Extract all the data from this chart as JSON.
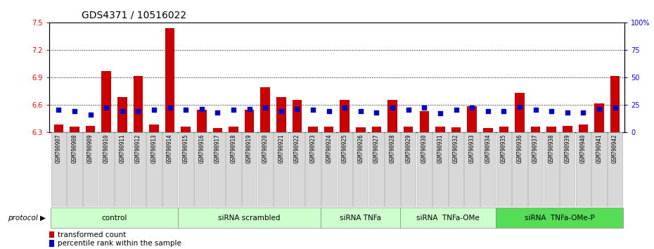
{
  "title": "GDS4371 / 10516022",
  "samples": [
    "GSM790907",
    "GSM790908",
    "GSM790909",
    "GSM790910",
    "GSM790911",
    "GSM790912",
    "GSM790913",
    "GSM790914",
    "GSM790915",
    "GSM790916",
    "GSM790917",
    "GSM790918",
    "GSM790919",
    "GSM790920",
    "GSM790921",
    "GSM790922",
    "GSM790923",
    "GSM790924",
    "GSM790925",
    "GSM790926",
    "GSM790927",
    "GSM790928",
    "GSM790929",
    "GSM790930",
    "GSM790931",
    "GSM790932",
    "GSM790933",
    "GSM790934",
    "GSM790935",
    "GSM790936",
    "GSM790937",
    "GSM790938",
    "GSM790939",
    "GSM790940",
    "GSM790941",
    "GSM790942"
  ],
  "red_values": [
    6.38,
    6.36,
    6.37,
    6.97,
    6.68,
    6.91,
    6.38,
    7.44,
    6.36,
    6.54,
    6.34,
    6.36,
    6.54,
    6.79,
    6.68,
    6.65,
    6.36,
    6.36,
    6.65,
    6.35,
    6.36,
    6.65,
    6.36,
    6.53,
    6.36,
    6.35,
    6.58,
    6.34,
    6.36,
    6.73,
    6.36,
    6.36,
    6.37,
    6.38,
    6.61,
    6.91
  ],
  "blue_values_pct": [
    20,
    19,
    16,
    22,
    19,
    19,
    20,
    22,
    20,
    21,
    18,
    20,
    21,
    22,
    19,
    21,
    20,
    19,
    22,
    19,
    18,
    22,
    20,
    22,
    17,
    20,
    22,
    19,
    19,
    23,
    20,
    19,
    18,
    18,
    21,
    22
  ],
  "groups": [
    {
      "label": "control",
      "start": 0,
      "end": 8,
      "color": "#ccffcc"
    },
    {
      "label": "siRNA scrambled",
      "start": 8,
      "end": 17,
      "color": "#ccffcc"
    },
    {
      "label": "siRNA TNFa",
      "start": 17,
      "end": 22,
      "color": "#ccffcc"
    },
    {
      "label": "siRNA  TNFa-OMe",
      "start": 22,
      "end": 28,
      "color": "#ccffcc"
    },
    {
      "label": "siRNA  TNFa-OMe-P",
      "start": 28,
      "end": 36,
      "color": "#55dd55"
    }
  ],
  "ylim_left": [
    6.3,
    7.5
  ],
  "yticks_left": [
    6.3,
    6.6,
    6.9,
    7.2,
    7.5
  ],
  "ylim_right": [
    0,
    100
  ],
  "yticks_right": [
    0,
    25,
    50,
    75,
    100
  ],
  "bar_color": "#cc0000",
  "blue_color": "#0000cc",
  "bar_bottom": 6.3,
  "tick_fontsize": 7,
  "group_fontsize": 7.5,
  "legend_fontsize": 7.5,
  "sample_fontsize": 5.5
}
